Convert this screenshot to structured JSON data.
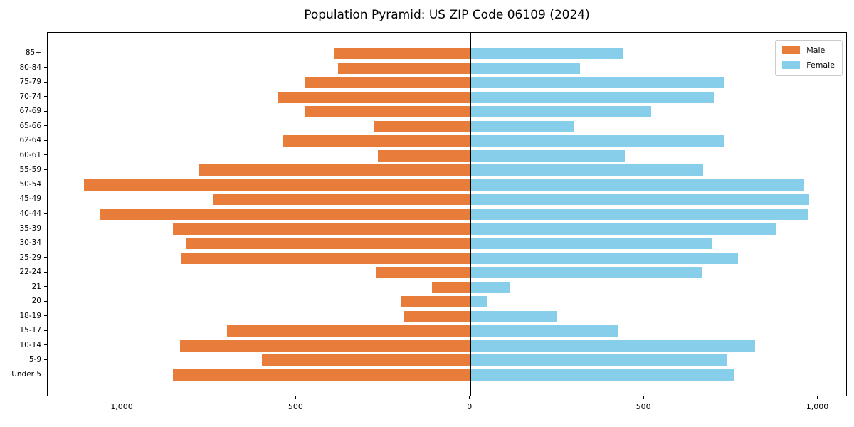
{
  "title": "Population Pyramid: US ZIP Code 06109 (2024)",
  "legend": {
    "male_label": "Male",
    "female_label": "Female"
  },
  "colors": {
    "male": "#e87d3b",
    "female": "#87ceeb",
    "axis": "#000000",
    "legend_border": "#cccccc"
  },
  "chart_data": {
    "type": "bar",
    "orientation": "horizontal-pyramid",
    "title": "Population Pyramid: US ZIP Code 06109 (2024)",
    "xlabel": "",
    "ylabel": "",
    "grid": false,
    "legend_position": "upper right",
    "categories": [
      "85+",
      "80-84",
      "75-79",
      "70-74",
      "67-69",
      "65-66",
      "62-64",
      "60-61",
      "55-59",
      "50-54",
      "45-49",
      "40-44",
      "35-39",
      "30-34",
      "25-29",
      "22-24",
      "21",
      "20",
      "18-19",
      "15-17",
      "10-14",
      "5-9",
      "Under 5"
    ],
    "series": [
      {
        "name": "Male",
        "side": "left",
        "values": [
          390,
          380,
          475,
          555,
          475,
          275,
          540,
          265,
          780,
          1110,
          740,
          1065,
          855,
          815,
          830,
          270,
          110,
          200,
          190,
          700,
          835,
          600,
          855
        ]
      },
      {
        "name": "Female",
        "side": "right",
        "values": [
          440,
          315,
          730,
          700,
          520,
          300,
          730,
          445,
          670,
          960,
          975,
          970,
          880,
          695,
          770,
          665,
          115,
          50,
          250,
          425,
          820,
          740,
          760
        ]
      }
    ],
    "x_tick_values": [
      -1000,
      -500,
      0,
      500,
      1000
    ],
    "x_tick_labels": [
      "1,000",
      "500",
      "0",
      "500",
      "1,000"
    ],
    "xlim": [
      -1215,
      1085
    ]
  }
}
